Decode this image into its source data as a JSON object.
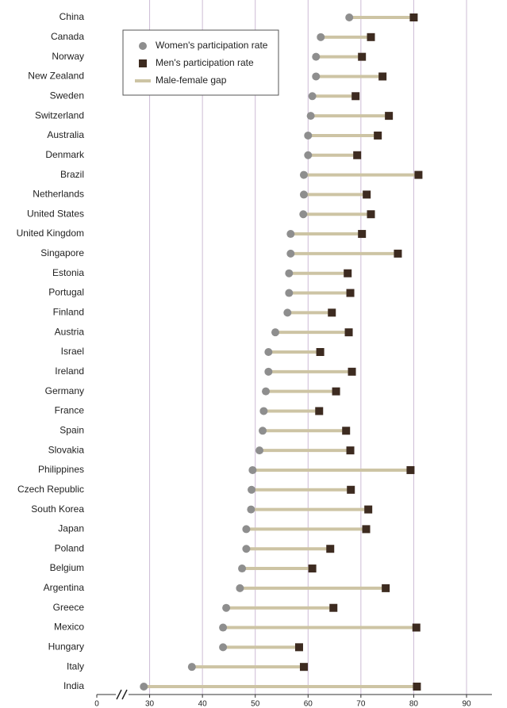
{
  "chart_data": {
    "type": "dumbbell",
    "categories": [
      "China",
      "Canada",
      "Norway",
      "New Zealand",
      "Sweden",
      "Switzerland",
      "Australia",
      "Denmark",
      "Brazil",
      "Netherlands",
      "United States",
      "United Kingdom",
      "Singapore",
      "Estonia",
      "Portugal",
      "Finland",
      "Austria",
      "Israel",
      "Ireland",
      "Germany",
      "France",
      "Spain",
      "Slovakia",
      "Philippines",
      "Czech Republic",
      "South Korea",
      "Japan",
      "Poland",
      "Belgium",
      "Argentina",
      "Greece",
      "Mexico",
      "Hungary",
      "Italy",
      "India"
    ],
    "series": [
      {
        "name": "Women's participation rate",
        "color": "#8e8e8e",
        "marker": "circle",
        "values": [
          67.8,
          62.4,
          61.5,
          61.5,
          60.8,
          60.5,
          60,
          60,
          59.2,
          59.2,
          59.1,
          56.7,
          56.7,
          56.4,
          56.4,
          56.1,
          53.8,
          52.5,
          52.5,
          52,
          51.6,
          51.4,
          50.8,
          49.5,
          49.3,
          49.2,
          48.3,
          48.3,
          47.5,
          47.1,
          44.5,
          43.9,
          43.9,
          38,
          28.9
        ]
      },
      {
        "name": "Men's participation rate",
        "color": "#3d2b20",
        "marker": "square",
        "values": [
          80,
          71.9,
          70.2,
          74.1,
          69,
          75.3,
          73.2,
          69.3,
          80.9,
          71.1,
          71.9,
          70.2,
          77,
          67.5,
          68,
          64.5,
          67.7,
          62.3,
          68.3,
          65.3,
          62.1,
          67.2,
          68,
          79.4,
          68.1,
          71.4,
          71,
          64.2,
          60.8,
          74.7,
          64.8,
          80.5,
          58.3,
          59.2,
          80.6
        ]
      }
    ],
    "gap": {
      "name": "Male-female gap",
      "color": "#cdc4a4"
    },
    "xlim": [
      20,
      90
    ],
    "xticks": [
      {
        "value": 20,
        "label": "0"
      },
      30,
      40,
      50,
      60,
      70,
      80,
      90
    ],
    "grid": true,
    "grid_color": "#cdbcd6"
  }
}
